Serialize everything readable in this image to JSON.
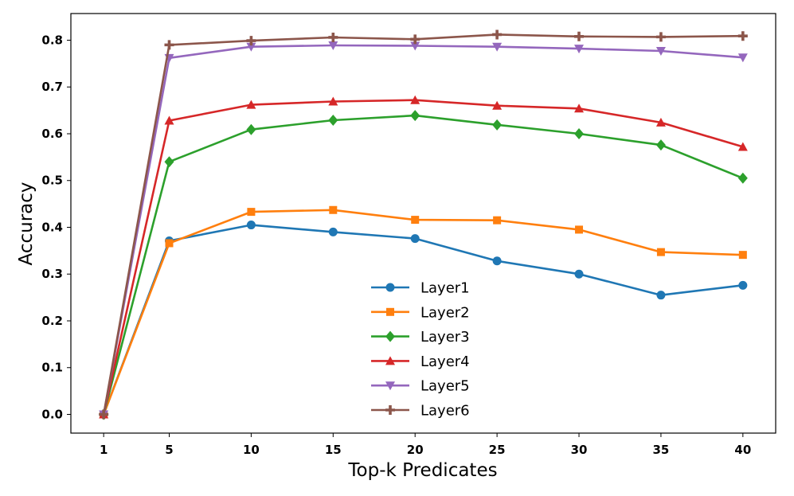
{
  "chart_data": {
    "type": "line",
    "title": "",
    "xlabel": "Top-k Predicates",
    "ylabel": "Accuracy",
    "x": [
      1,
      5,
      10,
      15,
      20,
      25,
      30,
      35,
      40
    ],
    "xticks": [
      "1",
      "5",
      "10",
      "15",
      "20",
      "25",
      "30",
      "35",
      "40"
    ],
    "yticks": [
      "0.0",
      "0.1",
      "0.2",
      "0.3",
      "0.4",
      "0.5",
      "0.6",
      "0.7",
      "0.8"
    ],
    "ylim": [
      -0.04,
      0.857
    ],
    "xlim": [
      -1.0,
      42.0
    ],
    "grid": false,
    "legend_position": "lower-center",
    "series": [
      {
        "name": "Layer1",
        "color": "#1f77b4",
        "marker": "circle",
        "values": [
          0.0,
          0.371,
          0.405,
          0.39,
          0.376,
          0.328,
          0.3,
          0.255,
          0.276
        ]
      },
      {
        "name": "Layer2",
        "color": "#ff7f0e",
        "marker": "square",
        "values": [
          0.0,
          0.366,
          0.433,
          0.437,
          0.416,
          0.415,
          0.395,
          0.347,
          0.341
        ]
      },
      {
        "name": "Layer3",
        "color": "#2ca02c",
        "marker": "diamond",
        "values": [
          0.0,
          0.54,
          0.609,
          0.629,
          0.639,
          0.619,
          0.6,
          0.576,
          0.505
        ]
      },
      {
        "name": "Layer4",
        "color": "#d62728",
        "marker": "triangle-up",
        "values": [
          0.0,
          0.628,
          0.662,
          0.669,
          0.672,
          0.66,
          0.654,
          0.624,
          0.572
        ]
      },
      {
        "name": "Layer5",
        "color": "#9467bd",
        "marker": "triangle-down",
        "values": [
          0.0,
          0.762,
          0.786,
          0.789,
          0.788,
          0.786,
          0.782,
          0.777,
          0.763
        ]
      },
      {
        "name": "Layer6",
        "color": "#8c564b",
        "marker": "plus",
        "values": [
          0.0,
          0.79,
          0.799,
          0.806,
          0.802,
          0.812,
          0.808,
          0.807,
          0.809
        ]
      }
    ]
  }
}
